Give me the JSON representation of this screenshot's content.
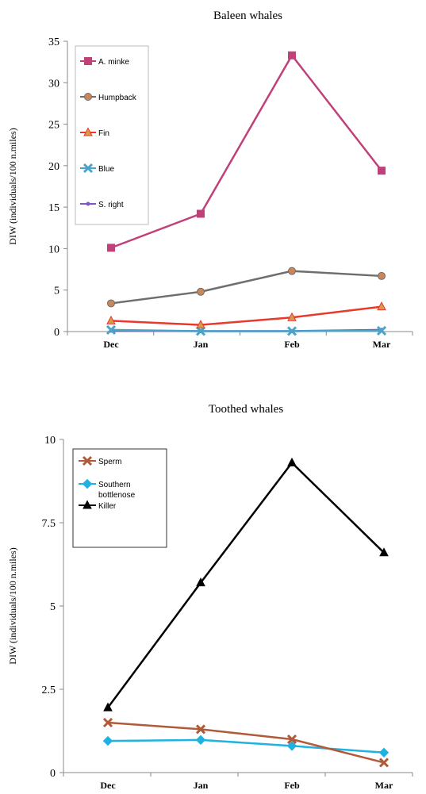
{
  "chart_data": [
    {
      "type": "line",
      "title": "Baleen whales",
      "ylabel": "DIW (individuals/100 n.miles)",
      "xlabel": "",
      "categories": [
        "Dec",
        "Jan",
        "Feb",
        "Mar"
      ],
      "ylim": [
        0,
        35
      ],
      "yticks": [
        "0",
        "5",
        "10",
        "15",
        "20",
        "25",
        "30",
        "35"
      ],
      "ytick_values": [
        0,
        5,
        10,
        15,
        20,
        25,
        30,
        35
      ],
      "grid": false,
      "legend_position": "top-left",
      "series": [
        {
          "name": "A. minke",
          "values": [
            10.1,
            14.2,
            33.3,
            19.4
          ],
          "color": "#c0407a",
          "marker": "square"
        },
        {
          "name": "Humpback",
          "values": [
            3.4,
            4.8,
            7.3,
            6.7
          ],
          "color": "#6e6e6e",
          "marker": "circle",
          "marker_fill": "#c9875a"
        },
        {
          "name": "Fin",
          "values": [
            1.3,
            0.8,
            1.7,
            3.0
          ],
          "color": "#e8392c",
          "marker": "triangle",
          "marker_fill": "#d89a4a"
        },
        {
          "name": "Blue",
          "values": [
            0.2,
            0.05,
            0.05,
            0.1
          ],
          "color": "#4aa3c9",
          "marker": "x"
        },
        {
          "name": "S. right",
          "values": [
            0.1,
            0.05,
            0.05,
            0.2
          ],
          "color": "#7b58c4",
          "marker": "dot"
        }
      ]
    },
    {
      "type": "line",
      "title": "Toothed whales",
      "ylabel": "DIW (individuals/100 n.miles)",
      "xlabel": "",
      "categories": [
        "Dec",
        "Jan",
        "Feb",
        "Mar"
      ],
      "ylim": [
        0,
        10
      ],
      "yticks": [
        "0",
        "2.5",
        "5",
        "7.5",
        "10"
      ],
      "ytick_values": [
        0,
        2.5,
        5,
        7.5,
        10
      ],
      "grid": false,
      "legend_position": "top-left",
      "series": [
        {
          "name": "Sperm",
          "values": [
            1.5,
            1.3,
            1.0,
            0.3
          ],
          "color": "#b05a3a",
          "marker": "x"
        },
        {
          "name": "Southern bottlenose",
          "values": [
            0.95,
            0.98,
            0.8,
            0.6
          ],
          "color": "#1fb2e0",
          "marker": "diamond"
        },
        {
          "name": "Killer",
          "values": [
            1.95,
            5.7,
            9.3,
            6.6
          ],
          "color": "#000000",
          "marker": "triangle"
        }
      ]
    }
  ]
}
